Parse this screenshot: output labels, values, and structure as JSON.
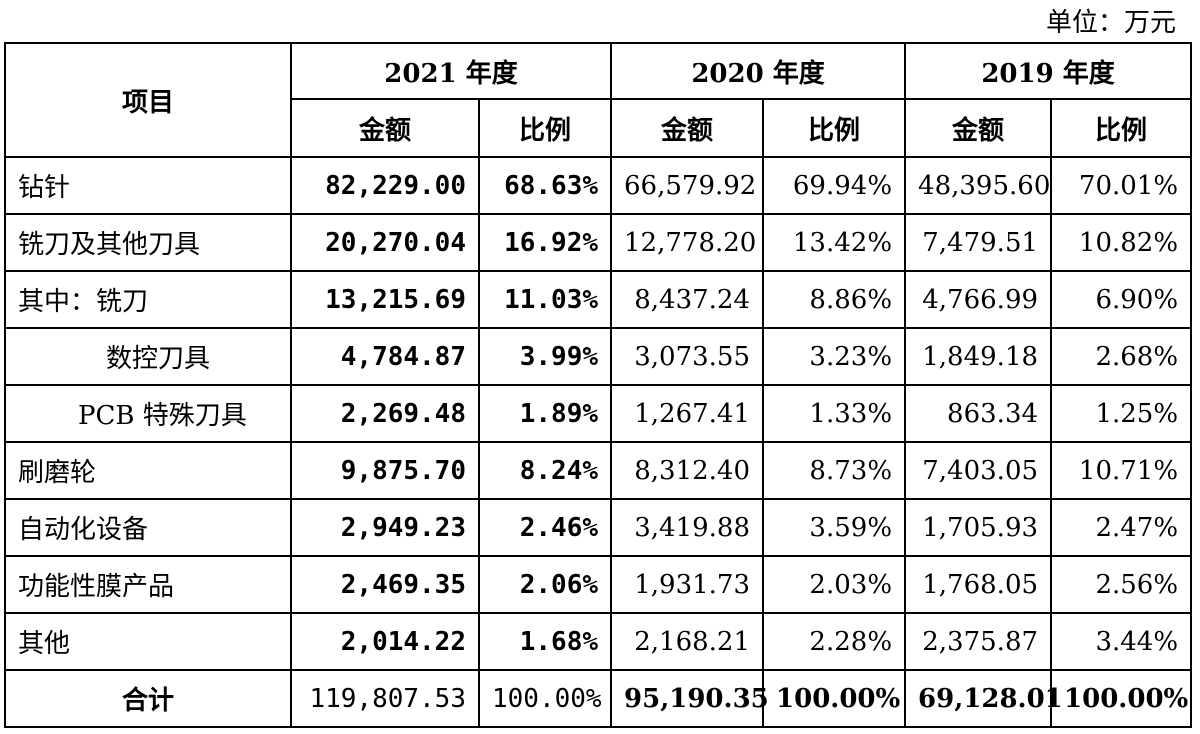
{
  "unit_label": "单位：万元",
  "header": {
    "item": "项目",
    "years": [
      "2021 年度",
      "2020 年度",
      "2019 年度"
    ],
    "amount": "金额",
    "ratio": "比例"
  },
  "rows": [
    {
      "label": "钻针",
      "v2021": "82,229.00",
      "r2021": "68.63%",
      "v2020": "66,579.92",
      "r2020": "69.94%",
      "v2019": "48,395.60",
      "r2019": "70.01%"
    },
    {
      "label": "铣刀及其他刀具",
      "v2021": "20,270.04",
      "r2021": "16.92%",
      "v2020": "12,778.20",
      "r2020": "13.42%",
      "v2019": "7,479.51",
      "r2019": "10.82%"
    },
    {
      "label": "其中：铣刀",
      "v2021": "13,215.69",
      "r2021": "11.03%",
      "v2020": "8,437.24",
      "r2020": "8.86%",
      "v2019": "4,766.99",
      "r2019": "6.90%"
    },
    {
      "label": "数控刀具",
      "v2021": "4,784.87",
      "r2021": "3.99%",
      "v2020": "3,073.55",
      "r2020": "3.23%",
      "v2019": "1,849.18",
      "r2019": "2.68%"
    },
    {
      "label": "PCB 特殊刀具",
      "v2021": "2,269.48",
      "r2021": "1.89%",
      "v2020": "1,267.41",
      "r2020": "1.33%",
      "v2019": "863.34",
      "r2019": "1.25%"
    },
    {
      "label": "刷磨轮",
      "v2021": "9,875.70",
      "r2021": "8.24%",
      "v2020": "8,312.40",
      "r2020": "8.73%",
      "v2019": "7,403.05",
      "r2019": "10.71%"
    },
    {
      "label": "自动化设备",
      "v2021": "2,949.23",
      "r2021": "2.46%",
      "v2020": "3,419.88",
      "r2020": "3.59%",
      "v2019": "1,705.93",
      "r2019": "2.47%"
    },
    {
      "label": "功能性膜产品",
      "v2021": "2,469.35",
      "r2021": "2.06%",
      "v2020": "1,931.73",
      "r2020": "2.03%",
      "v2019": "1,768.05",
      "r2019": "2.56%"
    },
    {
      "label": "其他",
      "v2021": "2,014.22",
      "r2021": "1.68%",
      "v2020": "2,168.21",
      "r2020": "2.28%",
      "v2019": "2,375.87",
      "r2019": "3.44%"
    }
  ],
  "total": {
    "label": "合计",
    "v2021": "119,807.53",
    "r2021": "100.00%",
    "v2020": "95,190.35",
    "r2020": "100.00%",
    "v2019": "69,128.01",
    "r2019": "100.00%"
  }
}
